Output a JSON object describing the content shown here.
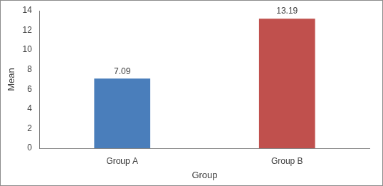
{
  "chart_data": {
    "type": "bar",
    "x_label": "Group",
    "y_label": "Mean",
    "categories": [
      "Group A",
      "Group B"
    ],
    "values": [
      7.09,
      13.19
    ],
    "colors": [
      "#4a7ebb",
      "#c0504d"
    ],
    "ylim": [
      0,
      14
    ],
    "yticks": [
      0,
      2,
      4,
      6,
      8,
      10,
      12,
      14
    ],
    "grid": false,
    "data_labels": true
  }
}
